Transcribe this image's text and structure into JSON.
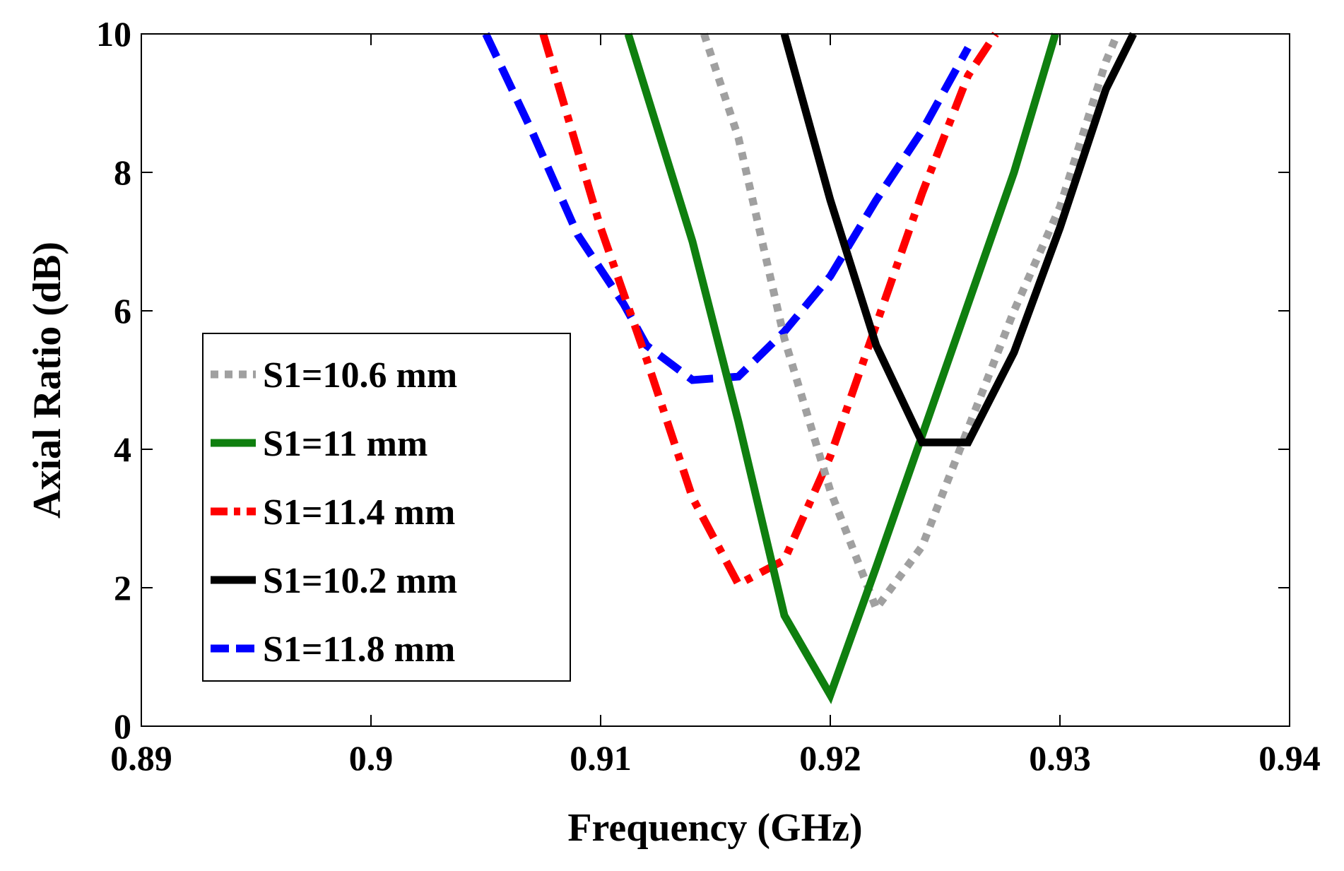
{
  "chart_data": {
    "type": "line",
    "title": "",
    "xlabel": "Frequency (GHz)",
    "ylabel": "Axial Ratio (dB)",
    "xlim": [
      0.89,
      0.94
    ],
    "ylim": [
      0,
      10
    ],
    "xticks": [
      "0.89",
      "0.9",
      "0.91",
      "0.92",
      "0.93",
      "0.94"
    ],
    "yticks": [
      "0",
      "2",
      "4",
      "6",
      "8",
      "10"
    ],
    "grid": false,
    "legend_position": "lower-left",
    "series": [
      {
        "name": "S1=10.6 mm",
        "color": "#a0a0a0",
        "style": "dotted",
        "x": [
          0.9145,
          0.916,
          0.918,
          0.92,
          0.922,
          0.924,
          0.926,
          0.928,
          0.93,
          0.932,
          0.9325
        ],
        "y": [
          10,
          8.5,
          5.6,
          3.4,
          1.7,
          2.6,
          4.3,
          6.0,
          7.5,
          9.6,
          10
        ]
      },
      {
        "name": "S1=11 mm",
        "color": "#0f7f0f",
        "style": "solid",
        "x": [
          0.9112,
          0.914,
          0.916,
          0.918,
          0.92,
          0.922,
          0.924,
          0.926,
          0.928,
          0.9298
        ],
        "y": [
          10,
          7.0,
          4.4,
          1.6,
          0.45,
          2.3,
          4.2,
          6.1,
          8.0,
          10
        ]
      },
      {
        "name": "S1=11.4 mm",
        "color": "#ff0000",
        "style": "dashdot",
        "x": [
          0.9075,
          0.91,
          0.912,
          0.914,
          0.916,
          0.918,
          0.92,
          0.922,
          0.924,
          0.926,
          0.9272
        ],
        "y": [
          10,
          7.2,
          5.3,
          3.3,
          2.05,
          2.4,
          3.9,
          5.8,
          7.7,
          9.4,
          10
        ]
      },
      {
        "name": "S1=10.2 mm",
        "color": "#000000",
        "style": "solid",
        "x": [
          0.918,
          0.92,
          0.922,
          0.924,
          0.926,
          0.928,
          0.93,
          0.932,
          0.9332
        ],
        "y": [
          10,
          7.6,
          5.5,
          4.1,
          4.1,
          5.4,
          7.2,
          9.2,
          10
        ]
      },
      {
        "name": "S1=11.8 mm",
        "color": "#0000ff",
        "style": "dashed",
        "x": [
          0.905,
          0.907,
          0.909,
          0.911,
          0.912,
          0.914,
          0.916,
          0.918,
          0.92,
          0.922,
          0.924,
          0.926
        ],
        "y": [
          10,
          8.6,
          7.1,
          6.1,
          5.5,
          5.0,
          5.05,
          5.7,
          6.5,
          7.6,
          8.6,
          9.8
        ]
      }
    ]
  }
}
